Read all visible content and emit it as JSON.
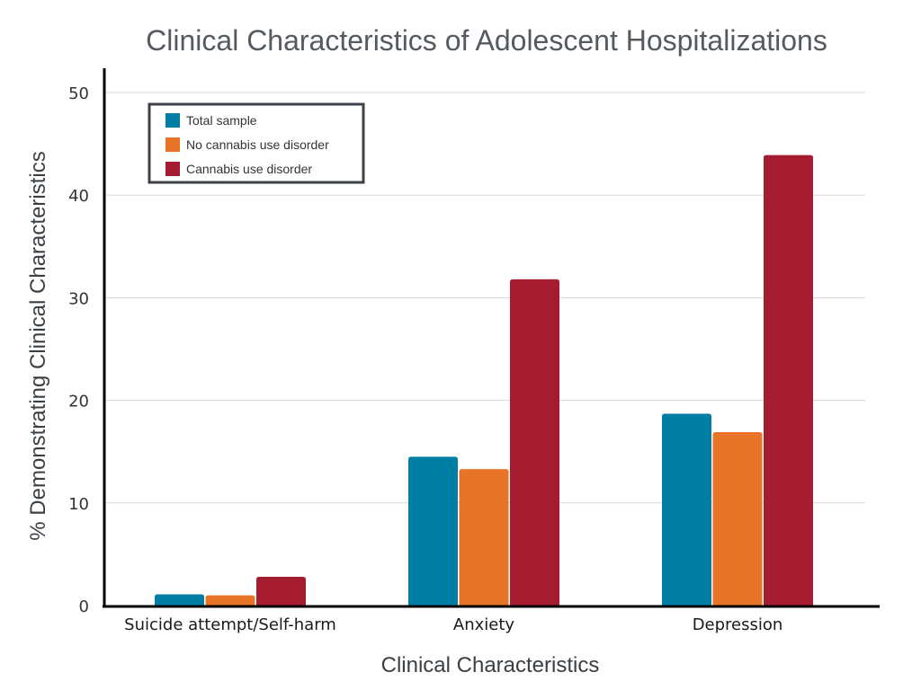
{
  "chart_data": {
    "type": "bar",
    "title": "Clinical Characteristics of Adolescent Hospitalizations",
    "xlabel": "Clinical Characteristics",
    "ylabel": "% Demonstrating Clinical Characteristics",
    "ylim": [
      0,
      50
    ],
    "yticks": [
      "0",
      "10",
      "20",
      "30",
      "40",
      "50"
    ],
    "grid": true,
    "legend_position": "top-left",
    "categories": [
      "Suicide attempt/Self-harm",
      "Anxiety",
      "Depression"
    ],
    "series": [
      {
        "name": "Total sample",
        "color": "#007ea3",
        "values": [
          1.1,
          14.5,
          18.7
        ]
      },
      {
        "name": "No cannabis use disorder",
        "color": "#e87427",
        "values": [
          1.0,
          13.3,
          16.9
        ]
      },
      {
        "name": "Cannabis use disorder",
        "color": "#a51c30",
        "values": [
          2.8,
          31.8,
          43.9
        ]
      }
    ]
  }
}
